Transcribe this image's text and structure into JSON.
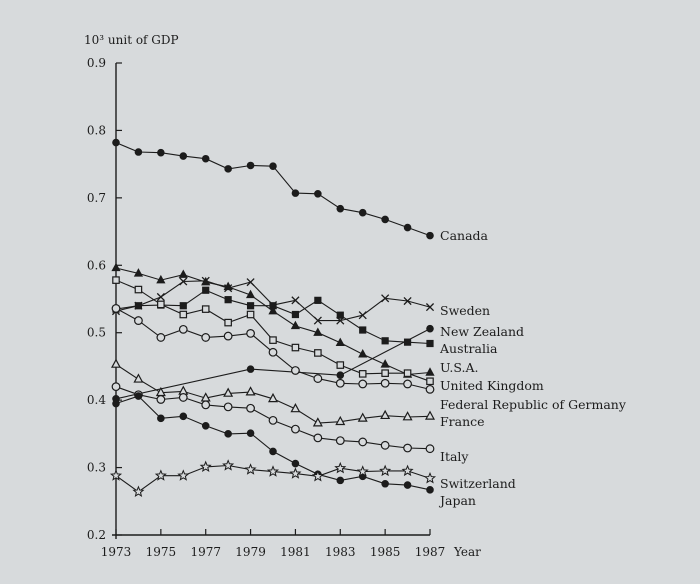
{
  "chart_data": {
    "type": "line",
    "title": "",
    "ylabel": "10³ unit of GDP",
    "xlabel": "Year",
    "ylim": [
      0.2,
      0.9
    ],
    "xlim": [
      1973,
      1987
    ],
    "yticks": [
      "0.2",
      "0.3",
      "0.4",
      "0.5",
      "0.6",
      "0.7",
      "0.8",
      "0.9"
    ],
    "xticks": [
      "1973",
      "1975",
      "1977",
      "1979",
      "1981",
      "1983",
      "1985",
      "1987"
    ],
    "grid": false,
    "legend": "direct labels at right end of each line",
    "colors": {
      "ink": "#1c1c1c",
      "background": "#d7dadc"
    },
    "series": [
      {
        "name": "Canada",
        "marker": "filled-circle",
        "x": [
          1973,
          1974,
          1975,
          1976,
          1977,
          1978,
          1979,
          1980,
          1981,
          1982,
          1983,
          1984,
          1985,
          1986,
          1987
        ],
        "values": [
          0.782,
          0.768,
          0.767,
          0.762,
          0.758,
          0.743,
          0.748,
          0.747,
          0.707,
          0.706,
          0.684,
          0.678,
          0.668,
          0.656,
          0.644
        ]
      },
      {
        "name": "Sweden",
        "marker": "cross",
        "x": [
          1973,
          1974,
          1975,
          1976,
          1977,
          1978,
          1979,
          1980,
          1981,
          1982,
          1983,
          1984,
          1985,
          1986,
          1987
        ],
        "values": [
          0.532,
          0.54,
          0.553,
          0.576,
          0.577,
          0.566,
          0.575,
          0.541,
          0.548,
          0.518,
          0.518,
          0.526,
          0.551,
          0.547,
          0.538
        ]
      },
      {
        "name": "New Zealand",
        "marker": "filled-circle",
        "x": [
          1973,
          1979,
          1983,
          1987
        ],
        "values": [
          0.402,
          0.446,
          0.437,
          0.506
        ]
      },
      {
        "name": "Australia",
        "marker": "filled-square",
        "x": [
          1973,
          1974,
          1975,
          1976,
          1977,
          1978,
          1979,
          1980,
          1981,
          1982,
          1983,
          1984,
          1985,
          1986,
          1987
        ],
        "values": [
          0.535,
          0.54,
          0.541,
          0.54,
          0.563,
          0.549,
          0.54,
          0.54,
          0.527,
          0.548,
          0.526,
          0.504,
          0.488,
          0.486,
          0.484
        ]
      },
      {
        "name": "U.S.A.",
        "marker": "filled-triangle",
        "x": [
          1973,
          1974,
          1975,
          1976,
          1977,
          1978,
          1979,
          1980,
          1981,
          1982,
          1983,
          1984,
          1985,
          1986,
          1987
        ],
        "values": [
          0.596,
          0.588,
          0.578,
          0.586,
          0.575,
          0.568,
          0.556,
          0.532,
          0.51,
          0.5,
          0.485,
          0.468,
          0.453,
          0.438,
          0.441
        ]
      },
      {
        "name": "United Kingdom",
        "marker": "open-square",
        "x": [
          1973,
          1974,
          1975,
          1976,
          1977,
          1978,
          1979,
          1980,
          1981,
          1982,
          1983,
          1984,
          1985,
          1986,
          1987
        ],
        "values": [
          0.578,
          0.564,
          0.542,
          0.527,
          0.535,
          0.515,
          0.527,
          0.489,
          0.478,
          0.47,
          0.452,
          0.439,
          0.44,
          0.44,
          0.428
        ]
      },
      {
        "name": "Federal Republic of Germany",
        "marker": "open-circle",
        "x": [
          1973,
          1974,
          1975,
          1976,
          1977,
          1978,
          1979,
          1980,
          1981,
          1982,
          1983,
          1984,
          1985,
          1986,
          1987
        ],
        "values": [
          0.536,
          0.518,
          0.493,
          0.505,
          0.493,
          0.495,
          0.499,
          0.471,
          0.444,
          0.432,
          0.425,
          0.424,
          0.425,
          0.424,
          0.416
        ]
      },
      {
        "name": "France",
        "marker": "open-triangle",
        "x": [
          1973,
          1974,
          1975,
          1976,
          1977,
          1978,
          1979,
          1980,
          1981,
          1982,
          1983,
          1984,
          1985,
          1986,
          1987
        ],
        "values": [
          0.453,
          0.431,
          0.411,
          0.413,
          0.403,
          0.41,
          0.412,
          0.402,
          0.387,
          0.366,
          0.368,
          0.373,
          0.377,
          0.375,
          0.376
        ]
      },
      {
        "name": "Italy",
        "marker": "open-circle",
        "x": [
          1973,
          1974,
          1975,
          1976,
          1977,
          1978,
          1979,
          1980,
          1981,
          1982,
          1983,
          1984,
          1985,
          1986,
          1987
        ],
        "values": [
          0.42,
          0.408,
          0.401,
          0.404,
          0.393,
          0.39,
          0.388,
          0.37,
          0.357,
          0.344,
          0.34,
          0.338,
          0.333,
          0.329,
          0.328
        ]
      },
      {
        "name": "Japan",
        "marker": "filled-circle",
        "x": [
          1973,
          1974,
          1975,
          1976,
          1977,
          1978,
          1979,
          1980,
          1981,
          1982,
          1983,
          1984,
          1985,
          1986,
          1987
        ],
        "values": [
          0.395,
          0.406,
          0.373,
          0.376,
          0.362,
          0.35,
          0.351,
          0.324,
          0.306,
          0.29,
          0.281,
          0.287,
          0.276,
          0.274,
          0.267
        ]
      },
      {
        "name": "Switzerland",
        "marker": "open-star",
        "x": [
          1973,
          1974,
          1975,
          1976,
          1977,
          1978,
          1979,
          1980,
          1981,
          1982,
          1983,
          1984,
          1985,
          1986,
          1987
        ],
        "values": [
          0.288,
          0.264,
          0.288,
          0.288,
          0.301,
          0.303,
          0.297,
          0.294,
          0.291,
          0.287,
          0.299,
          0.294,
          0.295,
          0.295,
          0.284
        ]
      }
    ]
  }
}
